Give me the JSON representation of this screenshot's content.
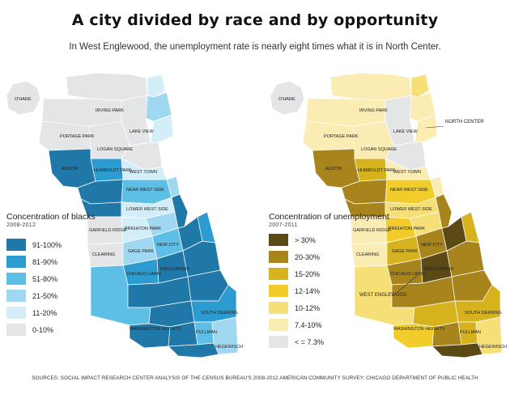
{
  "header": {
    "title": "A city divided by race and by opportunity",
    "subtitle": "In West Englewood, the unemployment rate is nearly eight times what it is in North Center."
  },
  "map_left": {
    "legend_title": "Concentration of blacks",
    "legend_years": "2008-2012",
    "categories": [
      {
        "label": "91-100%",
        "color": "#1f78a8"
      },
      {
        "label": "81-90%",
        "color": "#2c9bd0"
      },
      {
        "label": "51-80%",
        "color": "#5ebfe6"
      },
      {
        "label": "21-50%",
        "color": "#9fd8f0"
      },
      {
        "label": "11-20%",
        "color": "#d3eef9"
      },
      {
        "label": "0-10%",
        "color": "#e4e5e6"
      }
    ]
  },
  "map_right": {
    "legend_title": "Concentration of unemployment",
    "legend_years": "2007-2011",
    "categories": [
      {
        "label": "> 30%",
        "color": "#5c4a14"
      },
      {
        "label": "20-30%",
        "color": "#a8841c"
      },
      {
        "label": "15-20%",
        "color": "#d6b21f"
      },
      {
        "label": "12-14%",
        "color": "#f2cc2a"
      },
      {
        "label": "10-12%",
        "color": "#f7df78"
      },
      {
        "label": "7.4-10%",
        "color": "#fbecb4"
      },
      {
        "label": "< = 7.3%",
        "color": "#e4e5e6"
      }
    ],
    "callouts": {
      "north": "NORTH CENTER",
      "west": "WEST ENGLEWOOD"
    }
  },
  "area_labels": [
    "O'HARE",
    "PORTAGE PARK",
    "IRVING PARK",
    "LAKE VIEW",
    "LOGAN SQUARE",
    "WEST TOWN",
    "NEAR WEST SIDE",
    "LOWER WEST SIDE",
    "BRIGHTON PARK",
    "NEW CITY",
    "GAGE PARK",
    "CHICAGO LAWN",
    "ENGLEWOOD",
    "WASHINGTON HEIGHTS",
    "PULLMAN",
    "HEGEWISCH",
    "SOUTH DEERING",
    "GARFIELD RIDGE",
    "CLEARING",
    "AUSTIN",
    "HUMBOLDT PARK"
  ],
  "footer": {
    "source": "SOURCES: SOCIAL IMPACT RESEARCH CENTER ANALYSIS OF THE CENSUS BUREAU'S 2008-2012 AMERICAN COMMUNITY SURVEY; CHICAGO DEPARTMENT OF PUBLIC HEALTH"
  }
}
